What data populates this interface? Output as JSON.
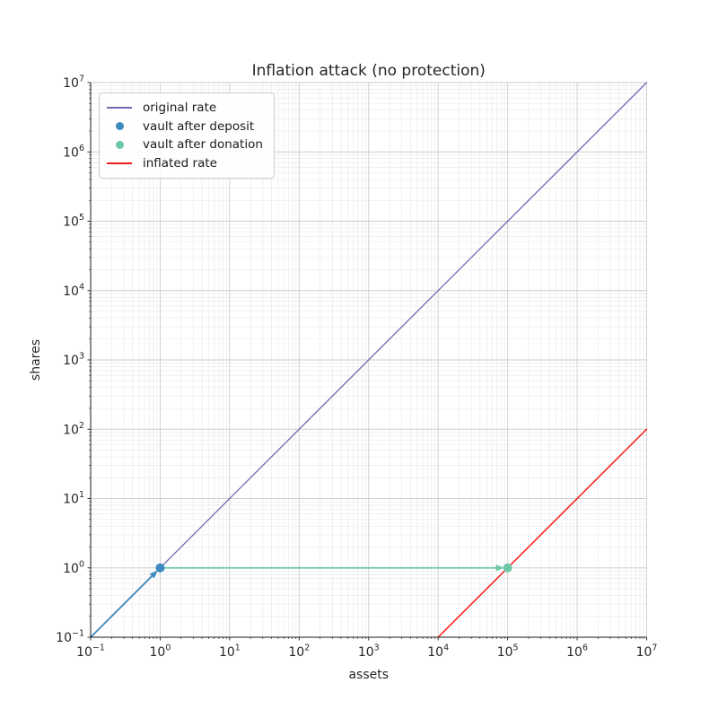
{
  "chart_data": {
    "type": "line",
    "title": "Inflation attack (no protection)",
    "xlabel": "assets",
    "ylabel": "shares",
    "xscale": "log",
    "yscale": "log",
    "xlim": [
      0.1,
      10000000
    ],
    "ylim": [
      0.1,
      10000000
    ],
    "grid": {
      "which": "both",
      "major_color": "#cdcdcd",
      "minor_color": "#e8e8e8"
    },
    "axis_color": "#1a1a1a",
    "tick_label_color": "#262626",
    "xticks": {
      "values": [
        0.1,
        1,
        10,
        100,
        1000,
        10000,
        100000,
        1000000,
        10000000
      ],
      "labels": [
        "10^-1",
        "10^0",
        "10^1",
        "10^2",
        "10^3",
        "10^4",
        "10^5",
        "10^6",
        "10^7"
      ]
    },
    "yticks": {
      "values": [
        0.1,
        1,
        10,
        100,
        1000,
        10000,
        100000,
        1000000,
        10000000
      ],
      "labels": [
        "10^-1",
        "10^0",
        "10^1",
        "10^2",
        "10^3",
        "10^4",
        "10^5",
        "10^6",
        "10^7"
      ]
    },
    "series": [
      {
        "name": "original rate",
        "kind": "line",
        "color": "#7268b4",
        "width": 1.3,
        "points": [
          [
            0.1,
            0.1
          ],
          [
            10000000,
            10000000
          ]
        ]
      },
      {
        "name": "inflated rate",
        "kind": "line",
        "color": "#f21c1c",
        "width": 1.5,
        "points": [
          [
            10000,
            0.1
          ],
          [
            10000000,
            100
          ]
        ]
      },
      {
        "name": "vault after deposit",
        "kind": "scatter",
        "color": "#3e8ac0",
        "radius": 5,
        "points": [
          [
            1,
            1
          ]
        ]
      },
      {
        "name": "vault after donation",
        "kind": "scatter",
        "color": "#6ec7a4",
        "radius": 5,
        "points": [
          [
            100000,
            1
          ]
        ]
      }
    ],
    "arrows": [
      {
        "name": "deposit-arrow",
        "color": "#3e8ac0",
        "width": 1.8,
        "from": [
          0.1,
          0.1
        ],
        "to": [
          1,
          1
        ]
      },
      {
        "name": "donation-arrow",
        "color": "#6ec7a4",
        "width": 1.8,
        "from": [
          1,
          1
        ],
        "to": [
          100000,
          1
        ]
      }
    ],
    "legend": {
      "position": "upper left",
      "entries": [
        {
          "label": "original rate",
          "swatch": "line",
          "color": "#7268b4"
        },
        {
          "label": "vault after deposit",
          "swatch": "dot",
          "color": "#3e8ac0"
        },
        {
          "label": "vault after donation",
          "swatch": "dot",
          "color": "#6ec7a4"
        },
        {
          "label": "inflated rate",
          "swatch": "line",
          "color": "#f21c1c"
        }
      ]
    }
  }
}
